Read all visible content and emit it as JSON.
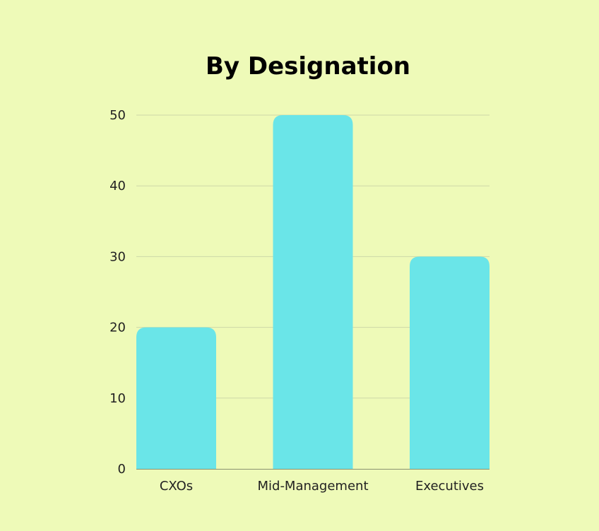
{
  "chart_data": {
    "type": "bar",
    "title": "By Designation",
    "xlabel": "",
    "ylabel": "",
    "categories": [
      "CXOs",
      "Mid-Management",
      "Executives"
    ],
    "values": [
      20,
      50,
      30
    ],
    "ylim": [
      0,
      50
    ],
    "yticks": [
      "0",
      "10",
      "20",
      "30",
      "40",
      "50"
    ],
    "grid": true,
    "legend": "none",
    "colors": {
      "background": "#eefab8",
      "bar": "#6ae5e8",
      "grid": "#cdd8a8",
      "axis": "#8a9270"
    }
  }
}
